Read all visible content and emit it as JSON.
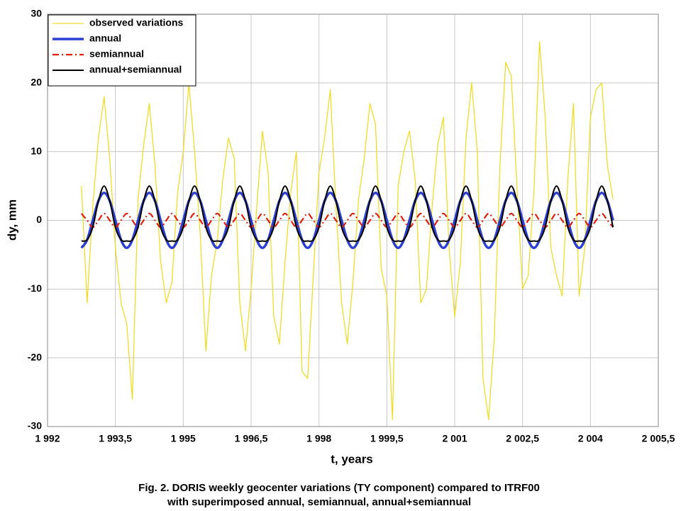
{
  "chart_data": {
    "type": "line",
    "caption": [
      "Fig. 2. DORIS weekly geocenter variations (TY component) compared to ITRF00",
      "with superimposed annual, semiannual, annual+semiannual"
    ],
    "x_label": "t, years",
    "y_label": "dy, mm",
    "xlim": [
      1992,
      2005.5
    ],
    "xticks": [
      {
        "value": 1992,
        "label": "1 992"
      },
      {
        "value": 1993.5,
        "label": "1 993,5"
      },
      {
        "value": 1995,
        "label": "1 995"
      },
      {
        "value": 1996.5,
        "label": "1 996,5"
      },
      {
        "value": 1998,
        "label": "1 998"
      },
      {
        "value": 1999.5,
        "label": "1 999,5"
      },
      {
        "value": 2001,
        "label": "2 001"
      },
      {
        "value": 2002.5,
        "label": "2 002,5"
      },
      {
        "value": 2004,
        "label": "2 004"
      },
      {
        "value": 2005.5,
        "label": "2 005,5"
      }
    ],
    "ylim": [
      -30,
      30
    ],
    "yticks": [
      -30,
      -20,
      -10,
      0,
      10,
      20,
      30
    ],
    "grid": true,
    "legend": "upper left",
    "x": [
      1992.75,
      1992.875,
      1993,
      1993.125,
      1993.25,
      1993.375,
      1993.5,
      1993.625,
      1993.75,
      1993.875,
      1994,
      1994.125,
      1994.25,
      1994.375,
      1994.5,
      1994.625,
      1994.75,
      1994.875,
      1995,
      1995.125,
      1995.25,
      1995.375,
      1995.5,
      1995.625,
      1995.75,
      1995.875,
      1996,
      1996.125,
      1996.25,
      1996.375,
      1996.5,
      1996.625,
      1996.75,
      1996.875,
      1997,
      1997.125,
      1997.25,
      1997.375,
      1997.5,
      1997.625,
      1997.75,
      1997.875,
      1998,
      1998.125,
      1998.25,
      1998.375,
      1998.5,
      1998.625,
      1998.75,
      1998.875,
      1999,
      1999.125,
      1999.25,
      1999.375,
      1999.5,
      1999.625,
      1999.75,
      1999.875,
      2000,
      2000.125,
      2000.25,
      2000.375,
      2000.5,
      2000.625,
      2000.75,
      2000.875,
      2001,
      2001.125,
      2001.25,
      2001.375,
      2001.5,
      2001.625,
      2001.75,
      2001.875,
      2002,
      2002.125,
      2002.25,
      2002.375,
      2002.5,
      2002.625,
      2002.75,
      2002.875,
      2003,
      2003.125,
      2003.25,
      2003.375,
      2003.5,
      2003.625,
      2003.75,
      2003.875,
      2004,
      2004.125,
      2004.25,
      2004.375,
      2004.5
    ],
    "series": [
      {
        "name": "observed variations",
        "color": "#f0dc28",
        "linestyle": "solid",
        "smooth": false,
        "values": [
          5,
          -12,
          2,
          12,
          18,
          9,
          -4,
          -12,
          -15,
          -26,
          3,
          11,
          17,
          8,
          -6,
          -12,
          -9,
          4,
          10,
          20,
          10,
          -2,
          -19,
          -8,
          -3,
          6,
          12,
          9,
          -12,
          -19,
          -10,
          2,
          13,
          7,
          -14,
          -18,
          -6,
          4,
          10,
          -22,
          -23,
          -8,
          7,
          12,
          19,
          2,
          -12,
          -18,
          -9,
          3,
          9,
          17,
          14,
          -7,
          -11,
          -29,
          5,
          10,
          13,
          6,
          -12,
          -10,
          2,
          11,
          15,
          -4,
          -14,
          -6,
          12,
          20,
          10,
          -23,
          -29,
          -17,
          8,
          23,
          21,
          5,
          -10,
          -8,
          4,
          26,
          15,
          -4,
          -8,
          -11,
          6,
          17,
          -11,
          -4,
          15,
          19,
          20,
          8,
          3
        ]
      },
      {
        "name": "annual",
        "color": "#2b3fd0",
        "linestyle": "solid",
        "smooth": true,
        "values": [
          -4,
          -2.83,
          0,
          2.83,
          4,
          2.83,
          0,
          -2.83,
          -4,
          -2.83,
          0,
          2.83,
          4,
          2.83,
          0,
          -2.83,
          -4,
          -2.83,
          0,
          2.83,
          4,
          2.83,
          0,
          -2.83,
          -4,
          -2.83,
          0,
          2.83,
          4,
          2.83,
          0,
          -2.83,
          -4,
          -2.83,
          0,
          2.83,
          4,
          2.83,
          0,
          -2.83,
          -4,
          -2.83,
          0,
          2.83,
          4,
          2.83,
          0,
          -2.83,
          -4,
          -2.83,
          0,
          2.83,
          4,
          2.83,
          0,
          -2.83,
          -4,
          -2.83,
          0,
          2.83,
          4,
          2.83,
          0,
          -2.83,
          -4,
          -2.83,
          0,
          2.83,
          4,
          2.83,
          0,
          -2.83,
          -4,
          -2.83,
          0,
          2.83,
          4,
          2.83,
          0,
          -2.83,
          -4,
          -2.83,
          0,
          2.83,
          4,
          2.83,
          0,
          -2.83,
          -4,
          -2.83,
          0,
          2.83,
          4,
          2.83,
          0
        ]
      },
      {
        "name": "semiannual",
        "color": "#e02010",
        "linestyle": "dashdot",
        "smooth": true,
        "values": [
          1,
          0,
          -1,
          0,
          1,
          0,
          -1,
          0,
          1,
          0,
          -1,
          0,
          1,
          0,
          -1,
          0,
          1,
          0,
          -1,
          0,
          1,
          0,
          -1,
          0,
          1,
          0,
          -1,
          0,
          1,
          0,
          -1,
          0,
          1,
          0,
          -1,
          0,
          1,
          0,
          -1,
          0,
          1,
          0,
          -1,
          0,
          1,
          0,
          -1,
          0,
          1,
          0,
          -1,
          0,
          1,
          0,
          -1,
          0,
          1,
          0,
          -1,
          0,
          1,
          0,
          -1,
          0,
          1,
          0,
          -1,
          0,
          1,
          0,
          -1,
          0,
          1,
          0,
          -1,
          0,
          1,
          0,
          -1,
          0,
          1,
          0,
          -1,
          0,
          1,
          0,
          -1,
          0,
          1,
          0,
          -1,
          0,
          1,
          0,
          -1
        ]
      },
      {
        "name": "annual+semiannual",
        "color": "#000000",
        "linestyle": "solid",
        "smooth": true,
        "values": [
          -3,
          -2.83,
          -1,
          2.83,
          5,
          2.83,
          -1,
          -2.83,
          -3,
          -2.83,
          -1,
          2.83,
          5,
          2.83,
          -1,
          -2.83,
          -3,
          -2.83,
          -1,
          2.83,
          5,
          2.83,
          -1,
          -2.83,
          -3,
          -2.83,
          -1,
          2.83,
          5,
          2.83,
          -1,
          -2.83,
          -3,
          -2.83,
          -1,
          2.83,
          5,
          2.83,
          -1,
          -2.83,
          -3,
          -2.83,
          -1,
          2.83,
          5,
          2.83,
          -1,
          -2.83,
          -3,
          -2.83,
          -1,
          2.83,
          5,
          2.83,
          -1,
          -2.83,
          -3,
          -2.83,
          -1,
          2.83,
          5,
          2.83,
          -1,
          -2.83,
          -3,
          -2.83,
          -1,
          2.83,
          5,
          2.83,
          -1,
          -2.83,
          -3,
          -2.83,
          -1,
          2.83,
          5,
          2.83,
          -1,
          -2.83,
          -3,
          -2.83,
          -1,
          2.83,
          5,
          2.83,
          -1,
          -2.83,
          -3,
          -2.83,
          -1,
          2.83,
          5,
          2.83,
          -1
        ]
      }
    ]
  }
}
